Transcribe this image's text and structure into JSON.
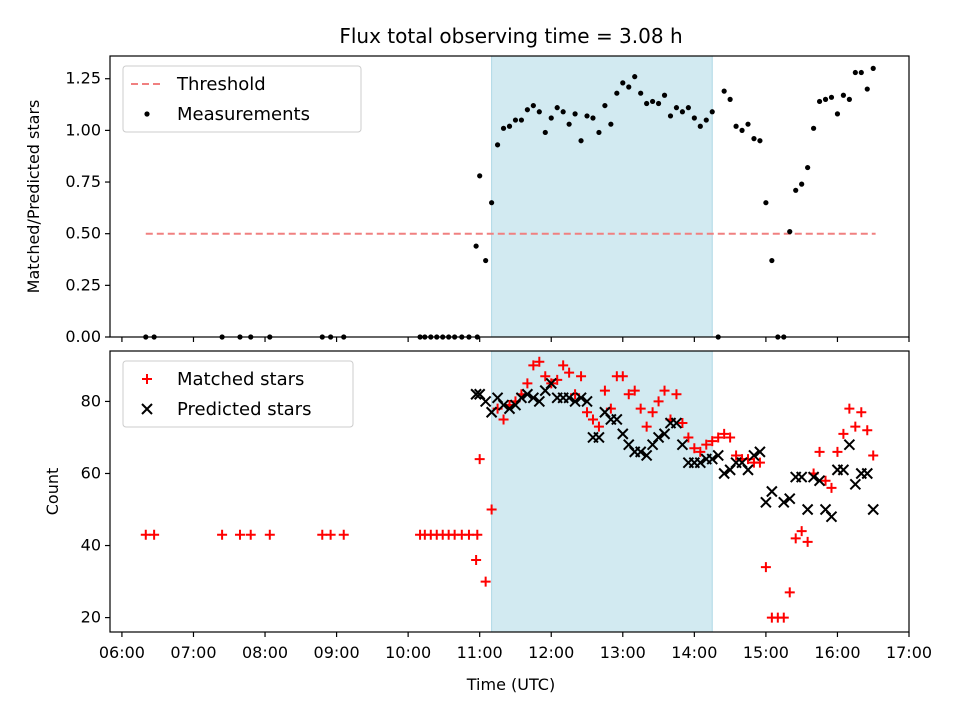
{
  "figure": {
    "title": "Flux total observing time = 3.08 h",
    "xlabel": "Time (UTC)",
    "x_ticks": [
      "06:00",
      "07:00",
      "08:00",
      "09:00",
      "10:00",
      "11:00",
      "12:00",
      "13:00",
      "14:00",
      "15:00",
      "16:00",
      "17:00"
    ]
  },
  "colors": {
    "threshold": "#f08080",
    "measurement": "#000000",
    "matched": "#ff0000",
    "predicted": "#000000",
    "span_fill": "#add8e6"
  },
  "chart_data": [
    {
      "type": "scatter",
      "panel": "top",
      "ylabel": "Matched/Predicted stars",
      "xlim": [
        "05:50",
        "17:00"
      ],
      "ylim": [
        0,
        1.36
      ],
      "y_ticks": [
        "0.00",
        "0.25",
        "0.50",
        "0.75",
        "1.00",
        "1.25"
      ],
      "grid": false,
      "legend_position": "upper-left",
      "shaded_span": [
        "11:10",
        "14:15"
      ],
      "threshold": {
        "name": "Threshold",
        "y": 0.5,
        "x_range": [
          "06:20",
          "16:32"
        ]
      },
      "series": [
        {
          "name": "Measurements",
          "points": [
            [
              "06:20",
              0
            ],
            [
              "06:27",
              0
            ],
            [
              "07:24",
              0
            ],
            [
              "07:39",
              0
            ],
            [
              "07:48",
              0
            ],
            [
              "08:04",
              0
            ],
            [
              "08:48",
              0
            ],
            [
              "08:55",
              0
            ],
            [
              "09:06",
              0
            ],
            [
              "10:10",
              0
            ],
            [
              "10:14",
              0
            ],
            [
              "10:19",
              0
            ],
            [
              "10:24",
              0
            ],
            [
              "10:29",
              0
            ],
            [
              "10:34",
              0
            ],
            [
              "10:39",
              0
            ],
            [
              "10:45",
              0
            ],
            [
              "10:51",
              0
            ],
            [
              "10:58",
              0
            ],
            [
              "10:57",
              0.44
            ],
            [
              "11:00",
              0.78
            ],
            [
              "11:05",
              0.37
            ],
            [
              "11:10",
              0.65
            ],
            [
              "11:15",
              0.93
            ],
            [
              "11:20",
              1.01
            ],
            [
              "11:25",
              1.02
            ],
            [
              "11:30",
              1.05
            ],
            [
              "11:35",
              1.05
            ],
            [
              "11:40",
              1.1
            ],
            [
              "11:45",
              1.12
            ],
            [
              "11:50",
              1.09
            ],
            [
              "11:55",
              0.99
            ],
            [
              "12:00",
              1.06
            ],
            [
              "12:05",
              1.11
            ],
            [
              "12:10",
              1.09
            ],
            [
              "12:15",
              1.03
            ],
            [
              "12:20",
              1.08
            ],
            [
              "12:25",
              0.95
            ],
            [
              "12:30",
              1.07
            ],
            [
              "12:35",
              1.06
            ],
            [
              "12:40",
              0.99
            ],
            [
              "12:45",
              1.12
            ],
            [
              "12:50",
              1.03
            ],
            [
              "12:55",
              1.18
            ],
            [
              "13:00",
              1.23
            ],
            [
              "13:05",
              1.21
            ],
            [
              "13:10",
              1.26
            ],
            [
              "13:15",
              1.18
            ],
            [
              "13:20",
              1.13
            ],
            [
              "13:25",
              1.14
            ],
            [
              "13:30",
              1.13
            ],
            [
              "13:35",
              1.17
            ],
            [
              "13:40",
              1.07
            ],
            [
              "13:45",
              1.11
            ],
            [
              "13:50",
              1.09
            ],
            [
              "13:55",
              1.11
            ],
            [
              "14:00",
              1.06
            ],
            [
              "14:05",
              1.02
            ],
            [
              "14:10",
              1.05
            ],
            [
              "14:15",
              1.09
            ],
            [
              "14:20",
              0
            ],
            [
              "14:25",
              1.19
            ],
            [
              "14:30",
              1.15
            ],
            [
              "14:35",
              1.02
            ],
            [
              "14:40",
              1.0
            ],
            [
              "14:45",
              1.03
            ],
            [
              "14:50",
              0.96
            ],
            [
              "14:55",
              0.95
            ],
            [
              "15:00",
              0.65
            ],
            [
              "15:05",
              0.37
            ],
            [
              "15:10",
              0
            ],
            [
              "15:15",
              0
            ],
            [
              "15:20",
              0.51
            ],
            [
              "15:25",
              0.71
            ],
            [
              "15:30",
              0.74
            ],
            [
              "15:35",
              0.82
            ],
            [
              "15:40",
              1.01
            ],
            [
              "15:45",
              1.14
            ],
            [
              "15:50",
              1.15
            ],
            [
              "15:55",
              1.16
            ],
            [
              "16:00",
              1.08
            ],
            [
              "16:05",
              1.17
            ],
            [
              "16:10",
              1.15
            ],
            [
              "16:15",
              1.28
            ],
            [
              "16:20",
              1.28
            ],
            [
              "16:25",
              1.2
            ],
            [
              "16:30",
              1.3
            ]
          ]
        }
      ]
    },
    {
      "type": "scatter",
      "panel": "bottom",
      "ylabel": "Count",
      "xlim": [
        "05:50",
        "17:00"
      ],
      "ylim": [
        16,
        94
      ],
      "y_ticks": [
        "20",
        "40",
        "60",
        "80"
      ],
      "grid": false,
      "legend_position": "upper-left",
      "shaded_span": [
        "11:10",
        "14:15"
      ],
      "series": [
        {
          "name": "Matched stars",
          "marker": "+",
          "points": [
            [
              "06:20",
              43
            ],
            [
              "06:27",
              43
            ],
            [
              "07:24",
              43
            ],
            [
              "07:39",
              43
            ],
            [
              "07:48",
              43
            ],
            [
              "08:04",
              43
            ],
            [
              "08:48",
              43
            ],
            [
              "08:55",
              43
            ],
            [
              "09:06",
              43
            ],
            [
              "10:10",
              43
            ],
            [
              "10:14",
              43
            ],
            [
              "10:19",
              43
            ],
            [
              "10:24",
              43
            ],
            [
              "10:29",
              43
            ],
            [
              "10:34",
              43
            ],
            [
              "10:39",
              43
            ],
            [
              "10:45",
              43
            ],
            [
              "10:51",
              43
            ],
            [
              "10:58",
              43
            ],
            [
              "10:57",
              36
            ],
            [
              "11:00",
              64
            ],
            [
              "11:05",
              30
            ],
            [
              "11:10",
              50
            ],
            [
              "11:15",
              78
            ],
            [
              "11:20",
              75
            ],
            [
              "11:25",
              79
            ],
            [
              "11:30",
              80
            ],
            [
              "11:35",
              82
            ],
            [
              "11:40",
              85
            ],
            [
              "11:45",
              90
            ],
            [
              "11:50",
              91
            ],
            [
              "11:55",
              87
            ],
            [
              "12:00",
              85
            ],
            [
              "12:05",
              86
            ],
            [
              "12:10",
              90
            ],
            [
              "12:15",
              88
            ],
            [
              "12:20",
              82
            ],
            [
              "12:25",
              87
            ],
            [
              "12:30",
              77
            ],
            [
              "12:35",
              75
            ],
            [
              "12:40",
              73
            ],
            [
              "12:45",
              83
            ],
            [
              "12:50",
              78
            ],
            [
              "12:55",
              87
            ],
            [
              "13:00",
              87
            ],
            [
              "13:05",
              82
            ],
            [
              "13:10",
              83
            ],
            [
              "13:15",
              78
            ],
            [
              "13:20",
              73
            ],
            [
              "13:25",
              77
            ],
            [
              "13:30",
              80
            ],
            [
              "13:35",
              83
            ],
            [
              "13:40",
              75
            ],
            [
              "13:45",
              82
            ],
            [
              "13:50",
              74
            ],
            [
              "13:55",
              70
            ],
            [
              "14:00",
              67
            ],
            [
              "14:05",
              66
            ],
            [
              "14:10",
              68
            ],
            [
              "14:15",
              69
            ],
            [
              "14:20",
              70
            ],
            [
              "14:25",
              71
            ],
            [
              "14:30",
              70
            ],
            [
              "14:35",
              65
            ],
            [
              "14:40",
              64
            ],
            [
              "14:45",
              64
            ],
            [
              "14:50",
              63
            ],
            [
              "14:55",
              63
            ],
            [
              "15:00",
              34
            ],
            [
              "15:05",
              20
            ],
            [
              "15:10",
              20
            ],
            [
              "15:15",
              20
            ],
            [
              "15:20",
              27
            ],
            [
              "15:25",
              42
            ],
            [
              "15:30",
              44
            ],
            [
              "15:35",
              41
            ],
            [
              "15:40",
              60
            ],
            [
              "15:45",
              66
            ],
            [
              "15:50",
              58
            ],
            [
              "15:55",
              56
            ],
            [
              "16:00",
              66
            ],
            [
              "16:05",
              71
            ],
            [
              "16:10",
              78
            ],
            [
              "16:15",
              73
            ],
            [
              "16:20",
              77
            ],
            [
              "16:25",
              72
            ],
            [
              "16:30",
              65
            ]
          ]
        },
        {
          "name": "Predicted stars",
          "marker": "x",
          "points": [
            [
              "10:57",
              82
            ],
            [
              "11:00",
              82
            ],
            [
              "11:05",
              80
            ],
            [
              "11:10",
              77
            ],
            [
              "11:15",
              81
            ],
            [
              "11:20",
              79
            ],
            [
              "11:25",
              78
            ],
            [
              "11:30",
              79
            ],
            [
              "11:35",
              81
            ],
            [
              "11:40",
              82
            ],
            [
              "11:45",
              81
            ],
            [
              "11:50",
              80
            ],
            [
              "11:55",
              83
            ],
            [
              "12:00",
              85
            ],
            [
              "12:05",
              81
            ],
            [
              "12:10",
              81
            ],
            [
              "12:15",
              81
            ],
            [
              "12:20",
              80
            ],
            [
              "12:25",
              81
            ],
            [
              "12:30",
              80
            ],
            [
              "12:35",
              70
            ],
            [
              "12:40",
              70
            ],
            [
              "12:45",
              77
            ],
            [
              "12:50",
              75
            ],
            [
              "12:55",
              75
            ],
            [
              "13:00",
              71
            ],
            [
              "13:05",
              68
            ],
            [
              "13:10",
              66
            ],
            [
              "13:15",
              66
            ],
            [
              "13:20",
              65
            ],
            [
              "13:25",
              68
            ],
            [
              "13:30",
              70
            ],
            [
              "13:35",
              71
            ],
            [
              "13:40",
              74
            ],
            [
              "13:45",
              74
            ],
            [
              "13:50",
              68
            ],
            [
              "13:55",
              63
            ],
            [
              "14:00",
              63
            ],
            [
              "14:05",
              63
            ],
            [
              "14:10",
              64
            ],
            [
              "14:15",
              64
            ],
            [
              "14:20",
              65
            ],
            [
              "14:25",
              60
            ],
            [
              "14:30",
              61
            ],
            [
              "14:35",
              63
            ],
            [
              "14:40",
              63
            ],
            [
              "14:45",
              61
            ],
            [
              "14:50",
              65
            ],
            [
              "14:55",
              66
            ],
            [
              "15:00",
              52
            ],
            [
              "15:05",
              55
            ],
            [
              "15:15",
              52
            ],
            [
              "15:20",
              53
            ],
            [
              "15:25",
              59
            ],
            [
              "15:30",
              59
            ],
            [
              "15:35",
              50
            ],
            [
              "15:40",
              59
            ],
            [
              "15:45",
              58
            ],
            [
              "15:50",
              50
            ],
            [
              "15:55",
              48
            ],
            [
              "16:00",
              61
            ],
            [
              "16:05",
              61
            ],
            [
              "16:10",
              68
            ],
            [
              "16:15",
              57
            ],
            [
              "16:20",
              60
            ],
            [
              "16:25",
              60
            ],
            [
              "16:30",
              50
            ]
          ]
        }
      ]
    }
  ]
}
